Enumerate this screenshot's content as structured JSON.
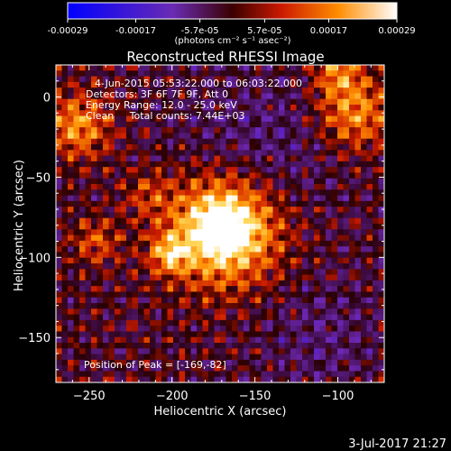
{
  "colorbar": {
    "tick_labels": [
      "-0.00029",
      "-0.00017",
      "-5.7e-05",
      "5.7e-05",
      "0.00017",
      "0.00029"
    ],
    "tick_values": [
      -0.00029,
      -0.00017,
      -5.7e-05,
      5.7e-05,
      0.00017,
      0.00029
    ],
    "range": [
      -0.00029,
      0.00029
    ],
    "units": "(photons cm⁻² s⁻¹ asec⁻²)",
    "colors": [
      "#0000ff",
      "#6a2bb3",
      "#3a0000",
      "#cc1a00",
      "#ff8c00",
      "#ffffff"
    ]
  },
  "chart_data": {
    "type": "heatmap",
    "title": "Reconstructed RHESSI Image",
    "xlabel": "Heliocentric X (arcsec)",
    "ylabel": "Heliocentric Y (arcsec)",
    "xlim": [
      -270,
      -72
    ],
    "ylim": [
      -178,
      20
    ],
    "xticks": [
      -250,
      -200,
      -150,
      -100
    ],
    "yticks": [
      0,
      -50,
      -100,
      -150
    ],
    "grid": false,
    "peak_position": [
      -169,
      -82
    ],
    "info_lines": [
      "4-Jun-2015 05:53:22.000 to 06:03:22.000",
      "Detectors: 3F 6F 7F 9F, Att 0",
      "Energy Range: 12.0 - 25.0 keV",
      "Clean     Total counts: 7.44E+03"
    ],
    "peak_label": "Position of Peak = [-169,-82]"
  },
  "footer": {
    "timestamp": "3-Jul-2017 21:27"
  }
}
